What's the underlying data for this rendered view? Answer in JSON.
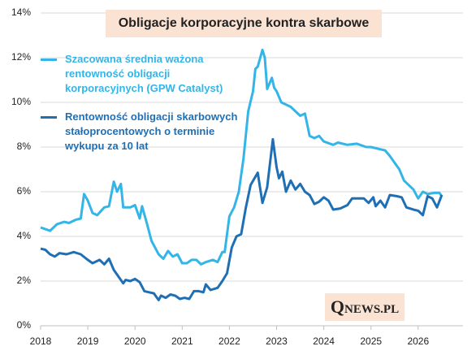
{
  "chart_data": {
    "type": "line",
    "title": "Obligacje korporacyjne kontra skarbowe",
    "logo": {
      "initial": "Q",
      "rest": "NEWS.PL"
    },
    "xlim": [
      2018,
      2026.95
    ],
    "xticks": [
      2018,
      2019,
      2020,
      2021,
      2022,
      2023,
      2024,
      2025,
      2026
    ],
    "ylim": [
      0,
      14
    ],
    "yticks": [
      {
        "value": 0,
        "label": "0%"
      },
      {
        "value": 2,
        "label": "2%"
      },
      {
        "value": 4,
        "label": "4%"
      },
      {
        "value": 6,
        "label": "6%"
      },
      {
        "value": 8,
        "label": "8%"
      },
      {
        "value": 10,
        "label": "10%"
      },
      {
        "value": 12,
        "label": "12%"
      },
      {
        "value": 14,
        "label": "14%"
      }
    ],
    "grid": true,
    "series": [
      {
        "name": "Szacowana średnia ważona rentowność obligacji korporacyjnych (GPW Catalyst)",
        "color": "#33b5e8",
        "x": [
          2018.0,
          2018.2,
          2018.35,
          2018.5,
          2018.6,
          2018.75,
          2018.85,
          2018.92,
          2019.0,
          2019.1,
          2019.2,
          2019.35,
          2019.45,
          2019.55,
          2019.62,
          2019.7,
          2019.75,
          2019.9,
          2020.0,
          2020.1,
          2020.15,
          2020.25,
          2020.35,
          2020.5,
          2020.6,
          2020.7,
          2020.8,
          2020.9,
          2021.0,
          2021.1,
          2021.2,
          2021.3,
          2021.4,
          2021.5,
          2021.65,
          2021.75,
          2021.85,
          2021.9,
          2022.0,
          2022.1,
          2022.2,
          2022.3,
          2022.4,
          2022.5,
          2022.55,
          2022.6,
          2022.7,
          2022.75,
          2022.8,
          2022.9,
          2022.95,
          2023.0,
          2023.1,
          2023.3,
          2023.4,
          2023.5,
          2023.6,
          2023.7,
          2023.8,
          2023.9,
          2024.0,
          2024.2,
          2024.3,
          2024.5,
          2024.7,
          2024.9,
          2025.0,
          2025.2,
          2025.3,
          2025.4,
          2025.6,
          2025.7,
          2025.8,
          2025.9,
          2026.0,
          2026.1,
          2026.2,
          2026.35,
          2026.45,
          2026.5
        ],
        "values": [
          4.4,
          4.25,
          4.55,
          4.65,
          4.6,
          4.75,
          4.8,
          5.9,
          5.6,
          5.05,
          4.95,
          5.3,
          5.35,
          6.45,
          6.0,
          6.35,
          5.3,
          5.3,
          5.4,
          4.8,
          5.35,
          4.6,
          3.8,
          3.2,
          3.0,
          3.35,
          3.1,
          3.2,
          2.8,
          2.8,
          2.95,
          2.95,
          2.75,
          2.85,
          2.95,
          2.85,
          3.3,
          3.3,
          4.9,
          5.3,
          6.0,
          7.5,
          9.6,
          10.5,
          11.5,
          11.6,
          12.35,
          12.0,
          10.6,
          11.1,
          10.65,
          10.5,
          10.0,
          9.8,
          9.6,
          9.4,
          9.5,
          8.5,
          8.4,
          8.5,
          8.25,
          8.1,
          8.2,
          8.1,
          8.15,
          8.0,
          8.0,
          7.9,
          7.85,
          7.6,
          7.0,
          6.5,
          6.3,
          6.1,
          5.7,
          6.0,
          5.9,
          5.95,
          5.95,
          5.8
        ]
      },
      {
        "name": "Rentowność obligacji skarbowych stałoprocentowych o terminie wykupu za 10 lat",
        "color": "#1f6fb5",
        "x": [
          2018.0,
          2018.1,
          2018.2,
          2018.3,
          2018.4,
          2018.55,
          2018.7,
          2018.85,
          2019.0,
          2019.1,
          2019.25,
          2019.35,
          2019.45,
          2019.55,
          2019.65,
          2019.75,
          2019.8,
          2019.9,
          2020.0,
          2020.1,
          2020.2,
          2020.3,
          2020.4,
          2020.5,
          2020.55,
          2020.65,
          2020.75,
          2020.85,
          2020.95,
          2021.05,
          2021.15,
          2021.25,
          2021.35,
          2021.45,
          2021.5,
          2021.6,
          2021.75,
          2021.85,
          2021.95,
          2022.05,
          2022.15,
          2022.25,
          2022.35,
          2022.45,
          2022.6,
          2022.7,
          2022.8,
          2022.92,
          2023.0,
          2023.05,
          2023.12,
          2023.2,
          2023.3,
          2023.4,
          2023.5,
          2023.6,
          2023.7,
          2023.8,
          2023.9,
          2024.0,
          2024.1,
          2024.2,
          2024.35,
          2024.5,
          2024.6,
          2024.75,
          2024.85,
          2024.95,
          2025.05,
          2025.1,
          2025.2,
          2025.3,
          2025.4,
          2025.55,
          2025.65,
          2025.75,
          2025.9,
          2026.0,
          2026.1,
          2026.2,
          2026.3,
          2026.4,
          2026.5
        ],
        "values": [
          3.45,
          3.4,
          3.2,
          3.1,
          3.25,
          3.2,
          3.3,
          3.2,
          2.95,
          2.8,
          2.95,
          2.75,
          3.0,
          2.5,
          2.2,
          1.9,
          2.05,
          2.0,
          2.1,
          1.95,
          1.55,
          1.5,
          1.45,
          1.15,
          1.35,
          1.25,
          1.4,
          1.35,
          1.2,
          1.25,
          1.2,
          1.55,
          1.55,
          1.5,
          1.85,
          1.6,
          1.7,
          2.0,
          2.35,
          3.5,
          4.0,
          4.1,
          5.3,
          6.3,
          6.85,
          5.5,
          6.2,
          8.35,
          7.1,
          6.6,
          6.9,
          6.0,
          6.5,
          6.1,
          6.35,
          6.0,
          5.85,
          5.45,
          5.55,
          5.75,
          5.6,
          5.2,
          5.25,
          5.4,
          5.7,
          5.7,
          5.7,
          5.5,
          5.75,
          5.35,
          5.6,
          5.3,
          5.85,
          5.8,
          5.75,
          5.3,
          5.2,
          5.15,
          4.95,
          5.8,
          5.7,
          5.3,
          5.85
        ]
      }
    ]
  }
}
